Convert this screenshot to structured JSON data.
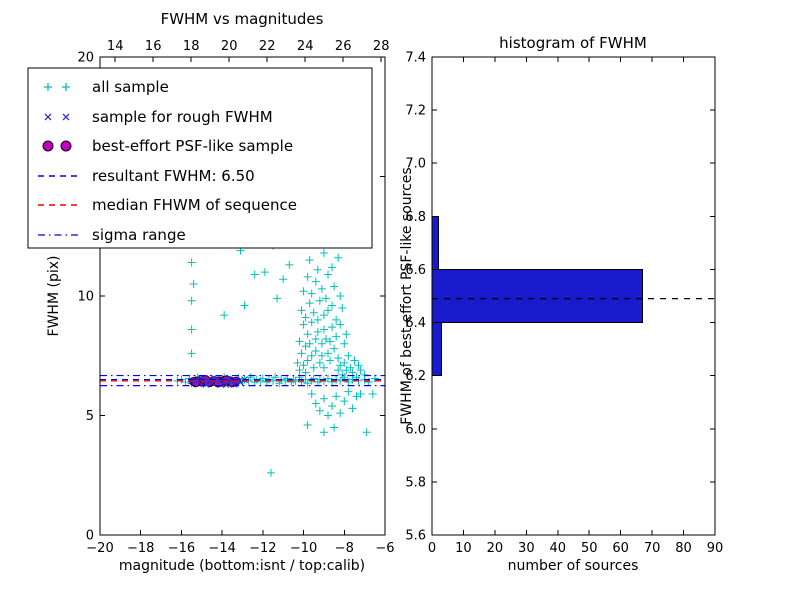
{
  "layout": {
    "background": "#ffffff",
    "frame_color": "#000000"
  },
  "chart_data": [
    {
      "type": "scatter",
      "title": "FWHM vs magnitudes",
      "xlabel": "magnitude (bottom:isnt / top:calib)",
      "ylabel": "FWHM (pix)",
      "xlim": [
        -20,
        -6
      ],
      "top_xlim": [
        13.2,
        28.2
      ],
      "ylim": [
        0,
        20
      ],
      "xticks_bottom": [
        -20,
        -18,
        -16,
        -14,
        -12,
        -10,
        -8,
        -6
      ],
      "xticks_top": [
        14,
        16,
        18,
        20,
        22,
        24,
        26,
        28
      ],
      "yticks": [
        0,
        5,
        10,
        15,
        20
      ],
      "legend": [
        {
          "label": "all sample",
          "marker": "plus",
          "color": "#00bfbf"
        },
        {
          "label": "sample for rough FWHM",
          "marker": "x",
          "color": "#3333cc"
        },
        {
          "label": "best-effort PSF-like sample",
          "marker": "circle",
          "color": "#bf00bf"
        },
        {
          "label": "resultant FWHM: 6.50",
          "line": "dashed",
          "color": "#0000ee"
        },
        {
          "label": "median FHWM of sequence",
          "line": "dashed",
          "color": "#ee0000"
        },
        {
          "label": "sigma range",
          "line": "dashdot",
          "color": "#0000ee"
        }
      ],
      "lines": [
        {
          "name": "resultant-fwhm",
          "y": 6.5,
          "style": "dashed",
          "color": "#0000ee"
        },
        {
          "name": "median-fwhm",
          "y": 6.45,
          "style": "dashed",
          "color": "#ee0000"
        },
        {
          "name": "sigma-upper",
          "y": 6.67,
          "style": "dashdot",
          "color": "#0000ee"
        },
        {
          "name": "sigma-lower",
          "y": 6.25,
          "style": "dashdot",
          "color": "#0000ee"
        }
      ],
      "series": [
        {
          "name": "all sample",
          "marker": "plus",
          "color": "#00bfbf",
          "points": [
            [
              -16.2,
              6.45
            ],
            [
              -16.0,
              6.5
            ],
            [
              -15.8,
              6.4
            ],
            [
              -15.6,
              6.55
            ],
            [
              -15.5,
              6.35
            ],
            [
              -15.3,
              6.5
            ],
            [
              -15.2,
              6.6
            ],
            [
              -15.0,
              6.4
            ],
            [
              -14.9,
              6.5
            ],
            [
              -14.8,
              6.45
            ],
            [
              -14.6,
              6.35
            ],
            [
              -14.5,
              6.55
            ],
            [
              -14.4,
              6.4
            ],
            [
              -14.2,
              6.5
            ],
            [
              -14.0,
              6.45
            ],
            [
              -13.9,
              6.6
            ],
            [
              -13.8,
              6.4
            ],
            [
              -13.6,
              6.5
            ],
            [
              -13.5,
              6.35
            ],
            [
              -13.3,
              6.45
            ],
            [
              -13.2,
              6.55
            ],
            [
              -13.0,
              6.4
            ],
            [
              -12.9,
              6.5
            ],
            [
              -12.7,
              6.45
            ],
            [
              -12.6,
              6.6
            ],
            [
              -12.4,
              6.4
            ],
            [
              -12.3,
              6.5
            ],
            [
              -12.1,
              6.45
            ],
            [
              -12.0,
              6.55
            ],
            [
              -11.8,
              6.4
            ],
            [
              -11.7,
              6.5
            ],
            [
              -11.5,
              6.45
            ],
            [
              -11.4,
              6.6
            ],
            [
              -11.2,
              6.35
            ],
            [
              -11.1,
              6.5
            ],
            [
              -10.9,
              6.45
            ],
            [
              -10.8,
              6.55
            ],
            [
              -10.6,
              6.4
            ],
            [
              -10.5,
              6.5
            ],
            [
              -10.4,
              6.45
            ],
            [
              -10.2,
              6.6
            ],
            [
              -10.1,
              6.4
            ],
            [
              -9.9,
              6.5
            ],
            [
              -9.8,
              6.35
            ],
            [
              -9.6,
              6.45
            ],
            [
              -9.5,
              6.55
            ],
            [
              -9.3,
              6.4
            ],
            [
              -9.2,
              6.5
            ],
            [
              -9.0,
              6.45
            ],
            [
              -8.8,
              6.55
            ],
            [
              -8.6,
              6.4
            ],
            [
              -8.4,
              6.5
            ],
            [
              -8.2,
              6.45
            ],
            [
              -8.0,
              6.6
            ],
            [
              -7.8,
              6.4
            ],
            [
              -7.6,
              6.5
            ],
            [
              -7.3,
              6.45
            ],
            [
              -7.0,
              6.5
            ],
            [
              -6.8,
              6.4
            ],
            [
              -6.5,
              6.55
            ],
            [
              -10.3,
              7.2
            ],
            [
              -10.2,
              8.1
            ],
            [
              -10.2,
              6.9
            ],
            [
              -10.1,
              9.4
            ],
            [
              -10.1,
              7.6
            ],
            [
              -10.0,
              8.8
            ],
            [
              -10.0,
              7.1
            ],
            [
              -10.0,
              10.2
            ],
            [
              -9.9,
              7.9
            ],
            [
              -9.9,
              9.1
            ],
            [
              -9.9,
              6.8
            ],
            [
              -9.8,
              8.4
            ],
            [
              -9.8,
              10.8
            ],
            [
              -9.8,
              7.3
            ],
            [
              -9.7,
              9.7
            ],
            [
              -9.7,
              8.0
            ],
            [
              -9.7,
              11.5
            ],
            [
              -9.6,
              7.5
            ],
            [
              -9.6,
              8.9
            ],
            [
              -9.6,
              10.1
            ],
            [
              -9.5,
              7.0
            ],
            [
              -9.5,
              9.3
            ],
            [
              -9.5,
              12.2
            ],
            [
              -9.4,
              8.2
            ],
            [
              -9.4,
              10.6
            ],
            [
              -9.4,
              7.7
            ],
            [
              -9.3,
              9.0
            ],
            [
              -9.3,
              11.1
            ],
            [
              -9.3,
              8.5
            ],
            [
              -9.2,
              7.2
            ],
            [
              -9.2,
              9.8
            ],
            [
              -9.2,
              12.8
            ],
            [
              -9.1,
              8.0
            ],
            [
              -9.1,
              10.3
            ],
            [
              -9.1,
              7.5
            ],
            [
              -9.0,
              9.2
            ],
            [
              -9.0,
              11.8
            ],
            [
              -9.0,
              8.6
            ],
            [
              -9.0,
              7.0
            ],
            [
              -8.9,
              9.9
            ],
            [
              -8.9,
              8.2
            ],
            [
              -8.9,
              13.1
            ],
            [
              -8.8,
              7.6
            ],
            [
              -8.8,
              10.9
            ],
            [
              -8.8,
              9.4
            ],
            [
              -8.7,
              8.1
            ],
            [
              -8.7,
              12.4
            ],
            [
              -8.7,
              7.3
            ],
            [
              -8.6,
              9.6
            ],
            [
              -8.6,
              11.2
            ],
            [
              -8.6,
              8.7
            ],
            [
              -8.5,
              7.8
            ],
            [
              -8.5,
              10.4
            ],
            [
              -8.5,
              13.4
            ],
            [
              -8.4,
              8.3
            ],
            [
              -8.4,
              9.0
            ],
            [
              -8.3,
              7.4
            ],
            [
              -8.3,
              11.6
            ],
            [
              -8.3,
              6.9
            ],
            [
              -8.2,
              8.8
            ],
            [
              -8.2,
              10.0
            ],
            [
              -8.2,
              7.1
            ],
            [
              -8.1,
              9.5
            ],
            [
              -8.1,
              6.7
            ],
            [
              -8.0,
              8.0
            ],
            [
              -8.0,
              7.2
            ],
            [
              -7.9,
              6.9
            ],
            [
              -7.9,
              8.4
            ],
            [
              -7.8,
              7.5
            ],
            [
              -7.7,
              7.0
            ],
            [
              -7.6,
              6.8
            ],
            [
              -7.5,
              7.3
            ],
            [
              -7.4,
              6.6
            ],
            [
              -7.3,
              7.1
            ],
            [
              -7.2,
              6.9
            ],
            [
              -7.0,
              6.7
            ],
            [
              -9.6,
              5.9
            ],
            [
              -9.4,
              5.5
            ],
            [
              -9.2,
              5.2
            ],
            [
              -9.0,
              5.7
            ],
            [
              -8.8,
              5.0
            ],
            [
              -8.6,
              5.4
            ],
            [
              -8.4,
              5.8
            ],
            [
              -8.2,
              5.1
            ],
            [
              -8.0,
              5.6
            ],
            [
              -7.8,
              6.0
            ],
            [
              -7.6,
              5.3
            ],
            [
              -7.2,
              5.9
            ],
            [
              -9.8,
              4.6
            ],
            [
              -9.0,
              4.3
            ],
            [
              -8.5,
              4.5
            ],
            [
              -6.9,
              4.3
            ],
            [
              -6.6,
              5.9
            ],
            [
              -7.4,
              5.8
            ],
            [
              -15.5,
              12.9
            ],
            [
              -15.5,
              11.4
            ],
            [
              -15.5,
              9.8
            ],
            [
              -15.5,
              8.6
            ],
            [
              -15.5,
              7.6
            ],
            [
              -15.4,
              10.5
            ],
            [
              -14.8,
              12.2
            ],
            [
              -14.2,
              13.0
            ],
            [
              -13.6,
              12.6
            ],
            [
              -13.1,
              11.9
            ],
            [
              -12.6,
              12.4
            ],
            [
              -12.1,
              13.2
            ],
            [
              -13.9,
              9.2
            ],
            [
              -12.9,
              9.6
            ],
            [
              -11.9,
              11.0
            ],
            [
              -11.5,
              12.1
            ],
            [
              -11.0,
              12.7
            ],
            [
              -10.7,
              11.3
            ],
            [
              -10.5,
              12.9
            ],
            [
              -11.3,
              9.9
            ],
            [
              -11.0,
              10.7
            ],
            [
              -12.4,
              10.9
            ],
            [
              -11.6,
              2.6
            ]
          ]
        },
        {
          "name": "sample for rough FWHM",
          "marker": "x",
          "color": "#3333cc",
          "points": [
            [
              -15.5,
              6.45
            ],
            [
              -15.3,
              6.4
            ],
            [
              -15.1,
              6.5
            ],
            [
              -14.9,
              6.42
            ],
            [
              -14.7,
              6.48
            ],
            [
              -14.5,
              6.38
            ],
            [
              -14.3,
              6.52
            ],
            [
              -14.1,
              6.44
            ],
            [
              -13.9,
              6.4
            ],
            [
              -13.7,
              6.5
            ],
            [
              -13.5,
              6.42
            ],
            [
              -13.3,
              6.46
            ],
            [
              -13.1,
              6.38
            ],
            [
              -12.9,
              6.5
            ],
            [
              -14.8,
              6.3
            ],
            [
              -14.0,
              6.32
            ],
            [
              -13.4,
              6.3
            ],
            [
              -15.0,
              6.55
            ],
            [
              -14.4,
              6.56
            ],
            [
              -13.8,
              6.28
            ]
          ]
        },
        {
          "name": "best-effort PSF-like sample",
          "marker": "circle",
          "color": "#bf00bf",
          "edge": "#1a001a",
          "points": [
            [
              -15.4,
              6.42
            ],
            [
              -15.2,
              6.45
            ],
            [
              -15.0,
              6.4
            ],
            [
              -14.9,
              6.48
            ],
            [
              -14.7,
              6.43
            ],
            [
              -14.6,
              6.38
            ],
            [
              -14.4,
              6.46
            ],
            [
              -14.3,
              6.41
            ],
            [
              -14.1,
              6.44
            ],
            [
              -14.0,
              6.39
            ],
            [
              -13.9,
              6.47
            ],
            [
              -13.7,
              6.42
            ],
            [
              -13.6,
              6.45
            ],
            [
              -13.4,
              6.4
            ],
            [
              -13.3,
              6.44
            ],
            [
              -15.3,
              6.37
            ],
            [
              -14.8,
              6.5
            ],
            [
              -14.2,
              6.36
            ],
            [
              -13.8,
              6.49
            ],
            [
              -13.5,
              6.37
            ]
          ]
        }
      ]
    },
    {
      "type": "bar",
      "orientation": "horizontal",
      "title": "histogram of FWHM",
      "xlabel": "number of sources",
      "ylabel": "FWHM of best-effort PSF-like sources",
      "xlim": [
        0,
        90
      ],
      "ylim": [
        5.6,
        7.4
      ],
      "xticks": [
        0,
        10,
        20,
        30,
        40,
        50,
        60,
        70,
        80,
        90
      ],
      "ytick_labels": [
        "5.6",
        "5.8",
        "6.0",
        "6.2",
        "6.4",
        "6.6",
        "6.8",
        "7.0",
        "7.2",
        "7.4"
      ],
      "bar_color": "#1a1acd",
      "bar_edge": "#000000",
      "bars": [
        {
          "y0": 6.2,
          "y1": 6.4,
          "value": 3
        },
        {
          "y0": 6.4,
          "y1": 6.6,
          "value": 67
        },
        {
          "y0": 6.6,
          "y1": 6.8,
          "value": 2
        }
      ],
      "median_line": {
        "y": 6.49,
        "style": "dashed",
        "color": "#000000"
      }
    }
  ]
}
